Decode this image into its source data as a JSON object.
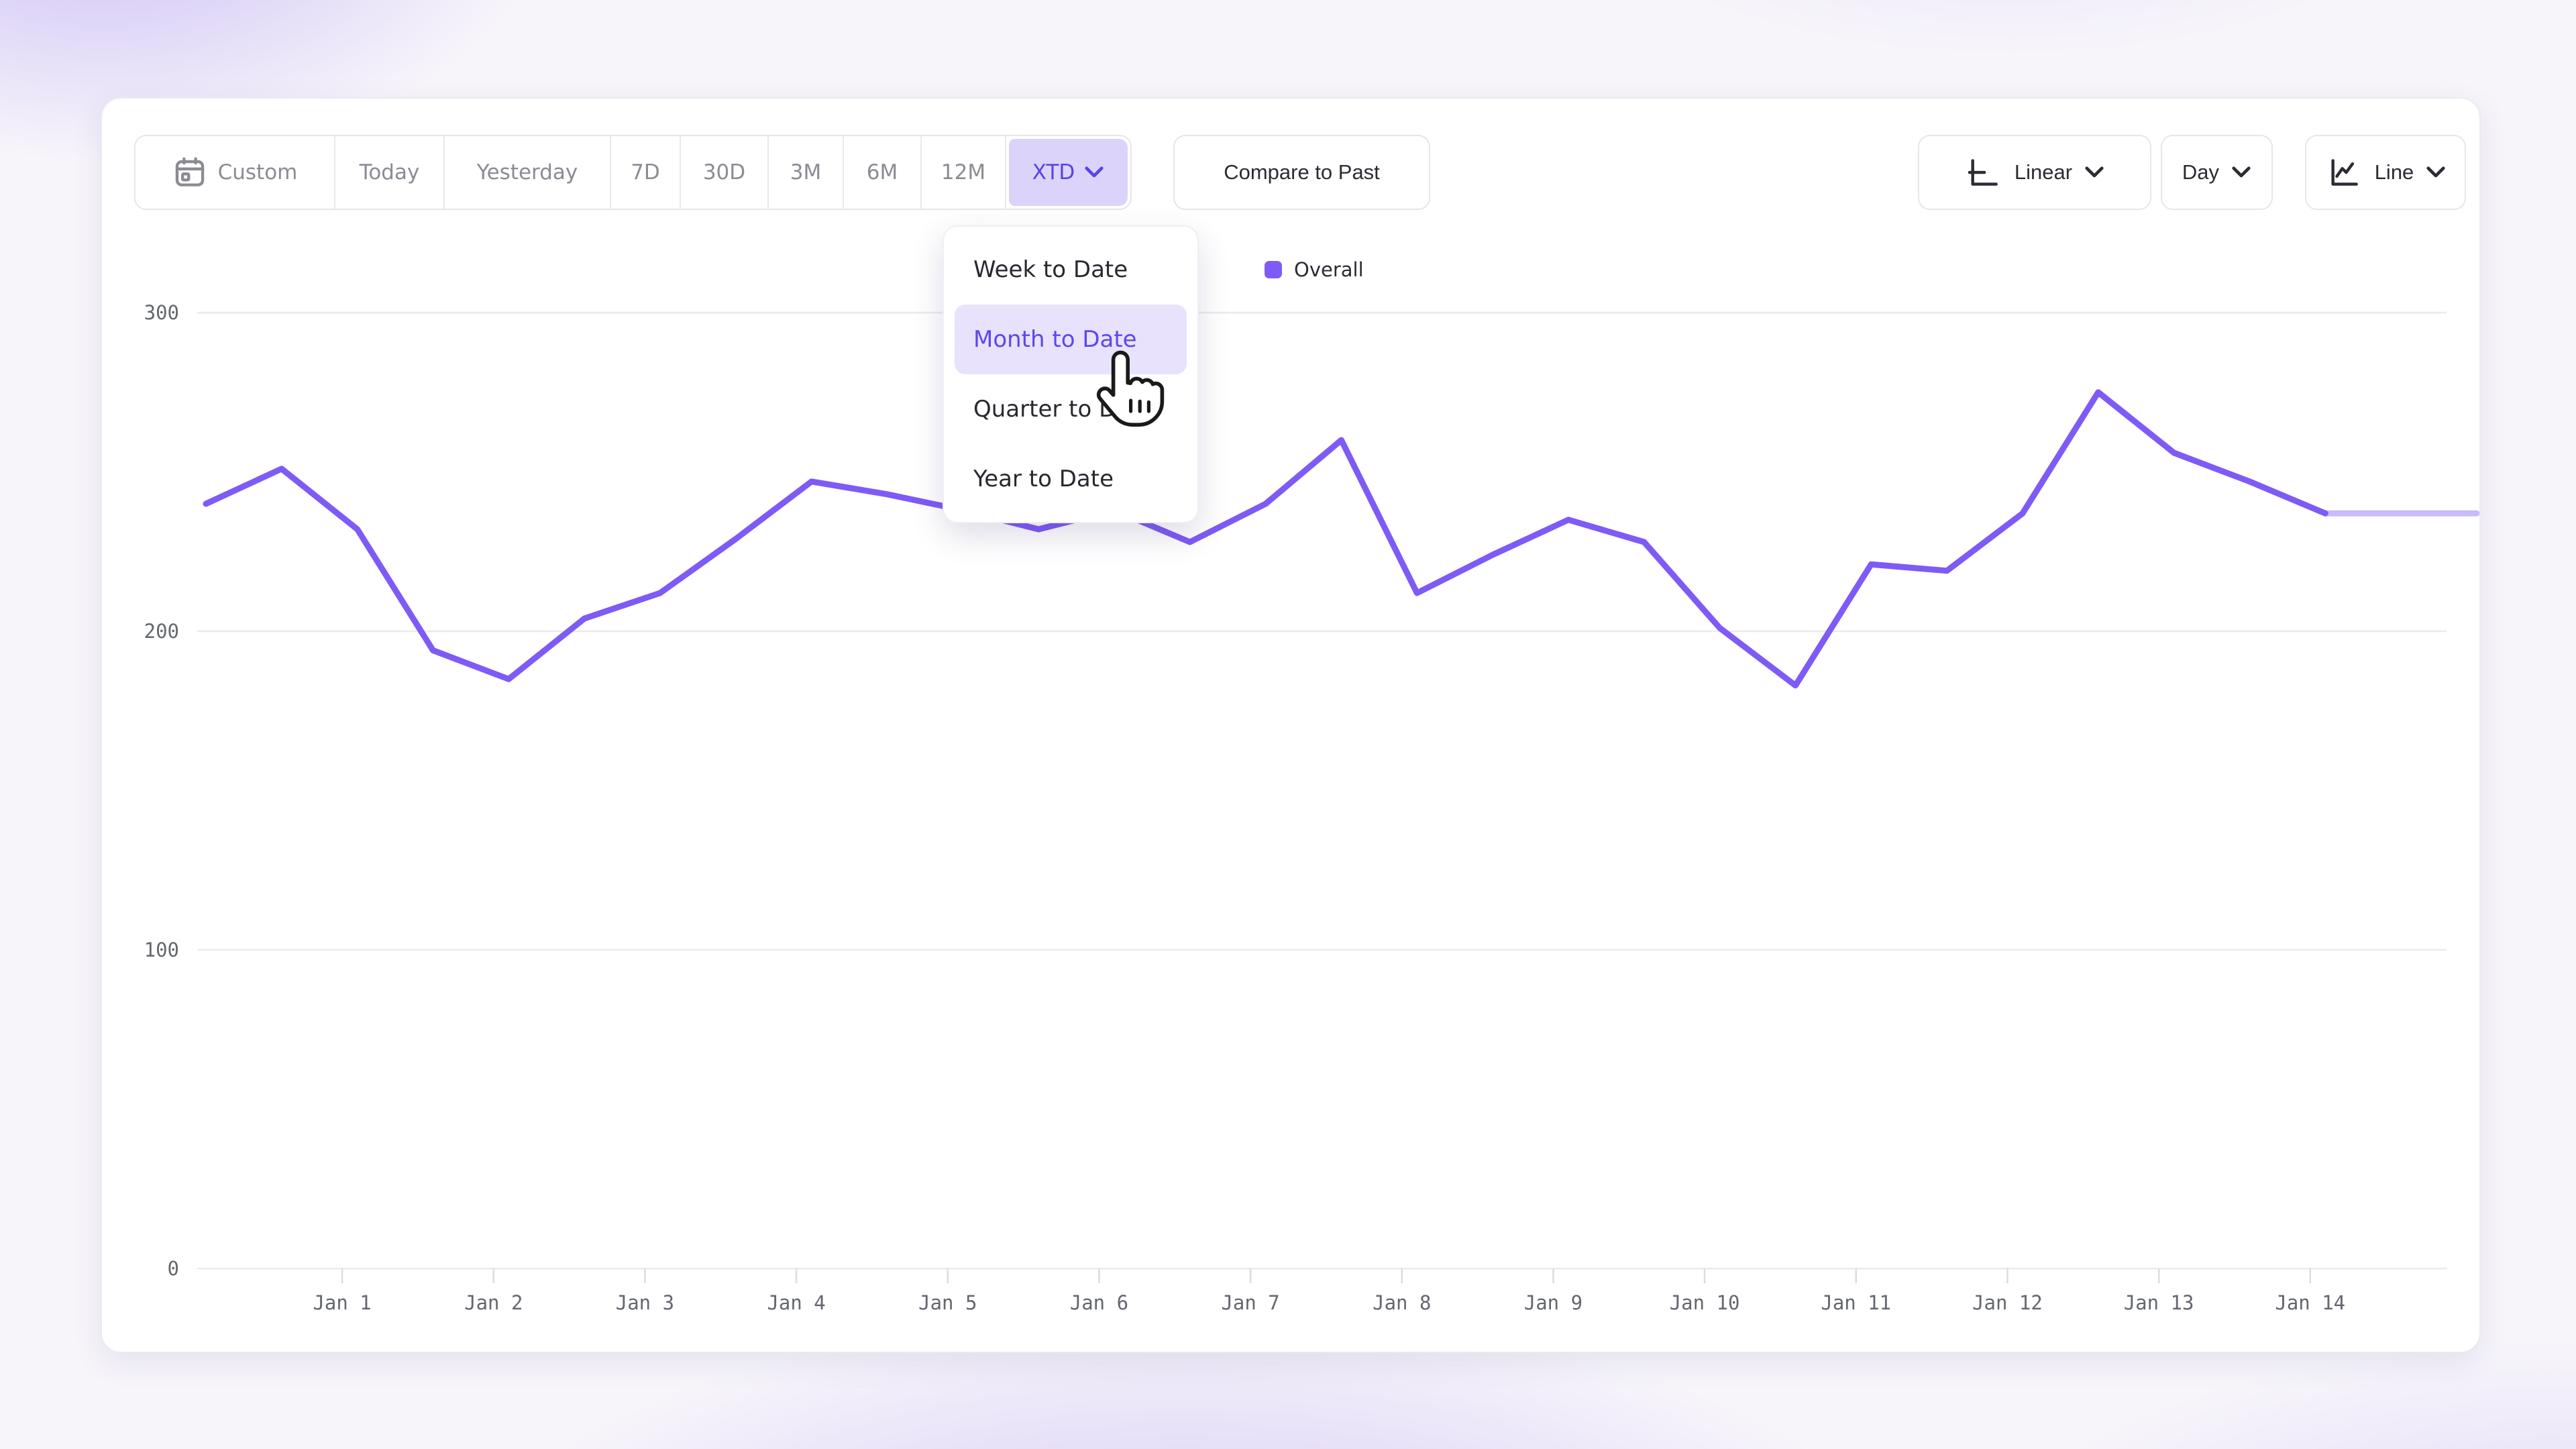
{
  "toolbar": {
    "range_buttons": [
      {
        "label": "Custom",
        "icon": "calendar-icon",
        "selected": false
      },
      {
        "label": "Today",
        "selected": false
      },
      {
        "label": "Yesterday",
        "selected": false
      },
      {
        "label": "7D",
        "selected": false
      },
      {
        "label": "30D",
        "selected": false
      },
      {
        "label": "3M",
        "selected": false
      },
      {
        "label": "6M",
        "selected": false
      },
      {
        "label": "12M",
        "selected": false
      },
      {
        "label": "XTD",
        "selected": true,
        "has_chevron": true
      }
    ],
    "compare_button": {
      "label": "Compare to Past"
    },
    "scale_select": {
      "label": "Linear",
      "icon": "linear-scale-icon"
    },
    "interval_select": {
      "label": "Day"
    },
    "chart_type_select": {
      "label": "Line",
      "icon": "line-chart-icon"
    }
  },
  "date_options_menu": {
    "items": [
      {
        "label": "Week to Date",
        "highlighted": false
      },
      {
        "label": "Month to Date",
        "highlighted": true
      },
      {
        "label": "Quarter to Date",
        "highlighted": false
      },
      {
        "label": "Year to Date",
        "highlighted": false
      }
    ]
  },
  "legend": {
    "series_label": "Overall",
    "swatch_color": "#7e5bf6"
  },
  "colors": {
    "accent_line": "#7e5bf6",
    "accent_line_incomplete": "#c9baf9",
    "selected_pill_bg": "#dcd3fb",
    "selected_pill_text": "#5544e9",
    "menu_highlight_bg": "#e9e2fc",
    "menu_highlight_text": "#5b48ea",
    "gridline": "#ebebee",
    "axis_text": "#64676e"
  },
  "chart_data": {
    "type": "line",
    "title": "",
    "xlabel": "",
    "ylabel": "",
    "ylim": [
      0,
      300
    ],
    "y_ticks": [
      0,
      100,
      200,
      300
    ],
    "grid": "horizontal",
    "legend_position": "top-center",
    "x_unit": "day",
    "x_days_start": 0.1,
    "x_days_step": 0.5,
    "x_axis_range": [
      0.1,
      15.1
    ],
    "x_ticks": [
      {
        "day": 1,
        "label": "Jan 1"
      },
      {
        "day": 2,
        "label": "Jan 2"
      },
      {
        "day": 3,
        "label": "Jan 3"
      },
      {
        "day": 4,
        "label": "Jan 4"
      },
      {
        "day": 5,
        "label": "Jan 5"
      },
      {
        "day": 6,
        "label": "Jan 6"
      },
      {
        "day": 7,
        "label": "Jan 7"
      },
      {
        "day": 8,
        "label": "Jan 8"
      },
      {
        "day": 9,
        "label": "Jan 9"
      },
      {
        "day": 10,
        "label": "Jan 10"
      },
      {
        "day": 11,
        "label": "Jan 11"
      },
      {
        "day": 12,
        "label": "Jan 12"
      },
      {
        "day": 13,
        "label": "Jan 13"
      },
      {
        "day": 14,
        "label": "Jan 14"
      }
    ],
    "series": [
      {
        "name": "Overall",
        "color": "#7e5bf6",
        "incomplete_color": "#c9baf9",
        "solid_until_index": 28,
        "values": [
          240,
          251,
          232,
          194,
          185,
          204,
          212,
          229,
          247,
          243,
          238,
          232,
          238,
          228,
          240,
          260,
          212,
          224,
          235,
          228,
          201,
          183,
          221,
          219,
          237,
          275,
          256,
          247,
          237,
          237,
          237
        ]
      }
    ]
  }
}
